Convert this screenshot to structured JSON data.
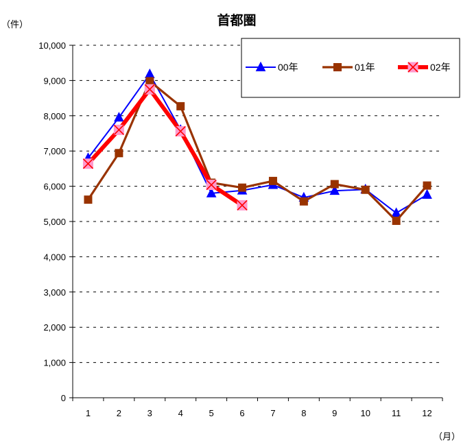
{
  "chart_data": {
    "type": "line",
    "title": "首都圏",
    "y_unit_label": "（件）",
    "x_unit_label": "（月）",
    "x": [
      "1",
      "2",
      "3",
      "4",
      "5",
      "6",
      "7",
      "8",
      "9",
      "10",
      "11",
      "12"
    ],
    "ylim": [
      0,
      10000
    ],
    "y_ticks": [
      {
        "value": 0,
        "label": "0"
      },
      {
        "value": 1000,
        "label": "1,000"
      },
      {
        "value": 2000,
        "label": "2,000"
      },
      {
        "value": 3000,
        "label": "3,000"
      },
      {
        "value": 4000,
        "label": "4,000"
      },
      {
        "value": 5000,
        "label": "5,000"
      },
      {
        "value": 6000,
        "label": "6,000"
      },
      {
        "value": 7000,
        "label": "7,000"
      },
      {
        "value": 8000,
        "label": "8,000"
      },
      {
        "value": 9000,
        "label": "9,000"
      },
      {
        "value": 10000,
        "label": "10,000"
      }
    ],
    "grid": "horizontal-dashed",
    "legend_position": "top-right",
    "series": [
      {
        "name": "00年",
        "color": "#0000ff",
        "marker": "triangle",
        "values": [
          6800,
          7950,
          9180,
          7600,
          5800,
          5880,
          6040,
          5680,
          5870,
          5910,
          5240,
          5760
        ]
      },
      {
        "name": "01年",
        "color": "#993300",
        "marker": "square",
        "values": [
          5620,
          6940,
          8980,
          8270,
          6100,
          5960,
          6150,
          5570,
          6060,
          5900,
          5020,
          6020
        ]
      },
      {
        "name": "02年",
        "color": "#ff0000",
        "marker": "x-box",
        "marker_fill": "#ff99cc",
        "values": [
          6640,
          7600,
          8750,
          7560,
          6040,
          5460,
          null,
          null,
          null,
          null,
          null,
          null
        ]
      }
    ]
  }
}
